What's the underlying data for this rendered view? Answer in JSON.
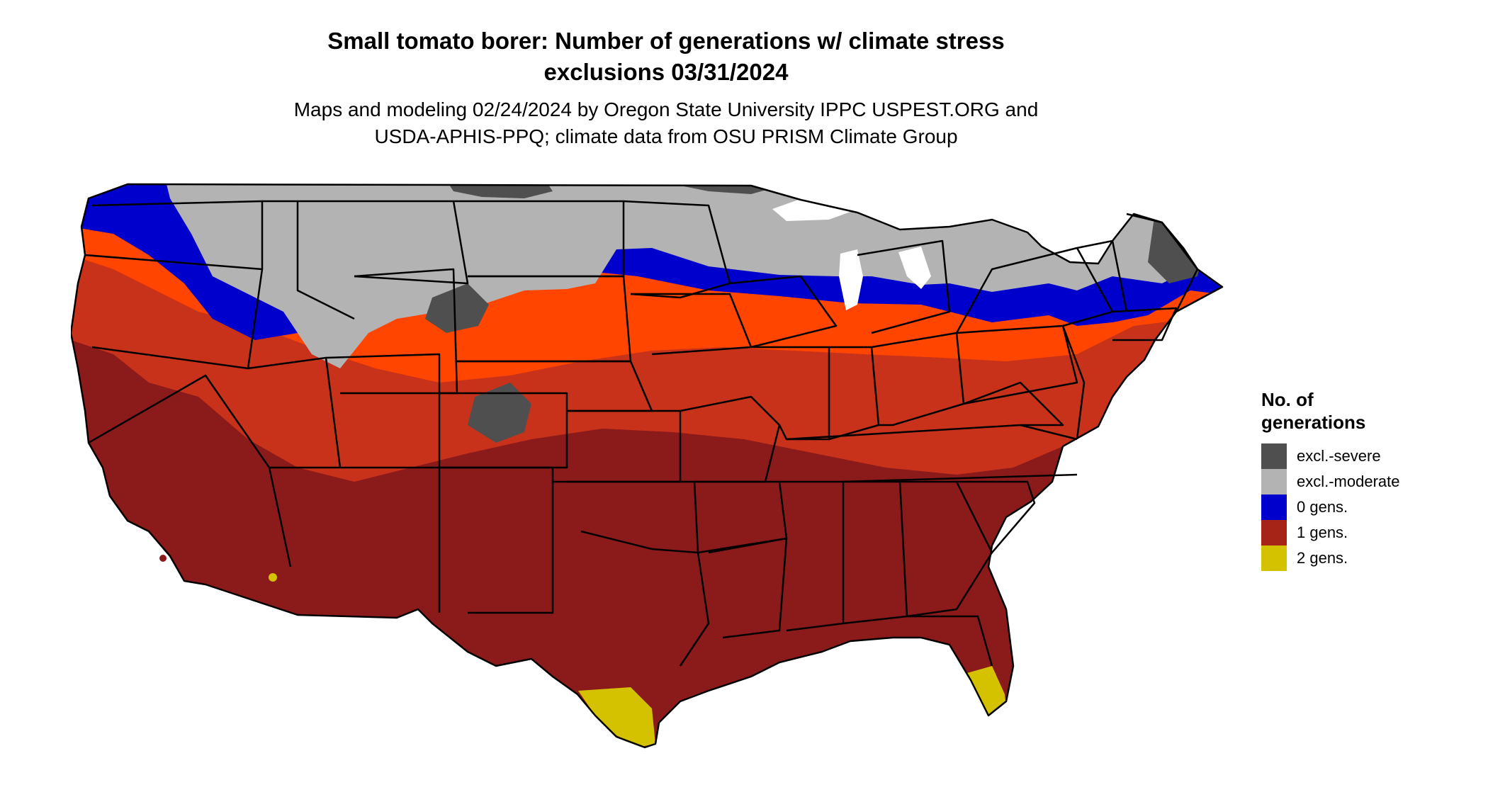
{
  "header": {
    "title_line1": "Small tomato borer: Number of generations w/ climate stress",
    "title_line2": "exclusions 03/31/2024",
    "subtitle_line1": "Maps and modeling 02/24/2024 by Oregon State University IPPC USPEST.ORG and",
    "subtitle_line2": "USDA-APHIS-PPQ; climate data from OSU PRISM Climate Group"
  },
  "legend": {
    "title_line1": "No. of",
    "title_line2": "generations",
    "items": [
      {
        "label": "excl.-severe",
        "color": "#4f4f4f"
      },
      {
        "label": "excl.-moderate",
        "color": "#b3b3b3"
      },
      {
        "label": "0 gens.",
        "color": "#0000cd"
      },
      {
        "label": "1 gens.",
        "color": "#a52317"
      },
      {
        "label": "2 gens.",
        "color": "#d4c200"
      }
    ]
  },
  "map": {
    "colors": {
      "excl_severe": "#4f4f4f",
      "excl_moderate": "#b3b3b3",
      "zero_gens": "#0000cd",
      "one_gens_dark": "#8b1a1a",
      "one_gens_mid": "#c8321a",
      "one_gens_light": "#ff4500",
      "two_gens": "#d4c200",
      "border": "#000000"
    }
  }
}
